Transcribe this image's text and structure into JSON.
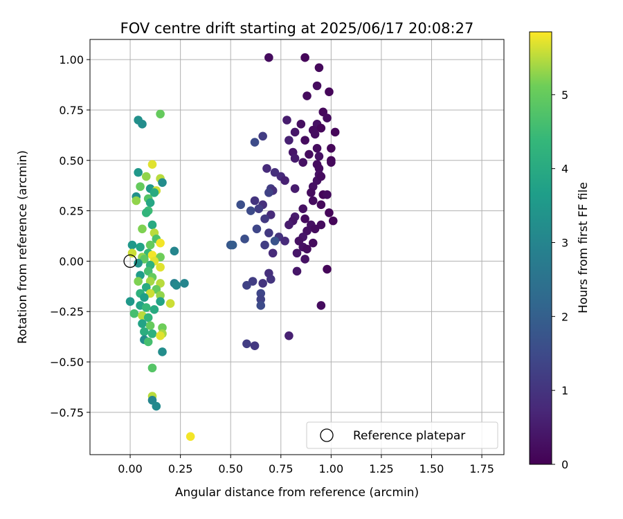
{
  "chart_data": {
    "type": "scatter",
    "title": "FOV centre drift starting at 2025/06/17 20:08:27",
    "xlabel": "Angular distance from reference (arcmin)",
    "ylabel": "Rotation from reference (arcmin)",
    "xlim": [
      -0.2,
      1.86
    ],
    "ylim": [
      -0.96,
      1.1
    ],
    "xticks": [
      0.0,
      0.25,
      0.5,
      0.75,
      1.0,
      1.25,
      1.5,
      1.75
    ],
    "xtick_labels": [
      "0.00",
      "0.25",
      "0.50",
      "0.75",
      "1.00",
      "1.25",
      "1.50",
      "1.75"
    ],
    "yticks": [
      -0.75,
      -0.5,
      -0.25,
      0.0,
      0.25,
      0.5,
      0.75,
      1.0
    ],
    "ytick_labels": [
      "−0.75",
      "−0.50",
      "−0.25",
      "0.00",
      "0.25",
      "0.50",
      "0.75",
      "1.00"
    ],
    "grid": true,
    "legend": {
      "position": "lower-right",
      "entries": [
        "Reference platepar"
      ]
    },
    "colorbar": {
      "label": "Hours from first FF file",
      "colormap": "viridis",
      "range": [
        0,
        5.85
      ],
      "ticks": [
        0,
        1,
        2,
        3,
        4,
        5
      ],
      "tick_labels": [
        "0",
        "1",
        "2",
        "3",
        "4",
        "5"
      ]
    },
    "reference": {
      "x": 0.0,
      "y": 0.0
    },
    "points": [
      {
        "x": 0.69,
        "y": 1.01,
        "h": 0.2
      },
      {
        "x": 0.87,
        "y": 1.01,
        "h": 0.1
      },
      {
        "x": 0.94,
        "y": 0.96,
        "h": 0.15
      },
      {
        "x": 0.93,
        "y": 0.87,
        "h": 0.2
      },
      {
        "x": 0.99,
        "y": 0.84,
        "h": 0.1
      },
      {
        "x": 0.88,
        "y": 0.82,
        "h": 0.2
      },
      {
        "x": 0.96,
        "y": 0.74,
        "h": 0.15
      },
      {
        "x": 0.98,
        "y": 0.71,
        "h": 0.2
      },
      {
        "x": 0.78,
        "y": 0.7,
        "h": 0.5
      },
      {
        "x": 0.85,
        "y": 0.68,
        "h": 0.25
      },
      {
        "x": 0.93,
        "y": 0.68,
        "h": 0.3
      },
      {
        "x": 0.95,
        "y": 0.66,
        "h": 0.1
      },
      {
        "x": 0.91,
        "y": 0.65,
        "h": 0.2
      },
      {
        "x": 0.82,
        "y": 0.64,
        "h": 0.4
      },
      {
        "x": 1.02,
        "y": 0.64,
        "h": 0.1
      },
      {
        "x": 0.92,
        "y": 0.63,
        "h": 0.25
      },
      {
        "x": 0.66,
        "y": 0.62,
        "h": 1.2
      },
      {
        "x": 0.62,
        "y": 0.59,
        "h": 1.5
      },
      {
        "x": 0.79,
        "y": 0.6,
        "h": 0.6
      },
      {
        "x": 0.87,
        "y": 0.6,
        "h": 0.2
      },
      {
        "x": 0.93,
        "y": 0.56,
        "h": 0.2
      },
      {
        "x": 1.0,
        "y": 0.56,
        "h": 0.1
      },
      {
        "x": 0.81,
        "y": 0.54,
        "h": 0.4
      },
      {
        "x": 0.89,
        "y": 0.53,
        "h": 0.2
      },
      {
        "x": 0.82,
        "y": 0.51,
        "h": 0.5
      },
      {
        "x": 0.94,
        "y": 0.52,
        "h": 0.3
      },
      {
        "x": 0.86,
        "y": 0.49,
        "h": 0.3
      },
      {
        "x": 1.0,
        "y": 0.5,
        "h": 0.1
      },
      {
        "x": 0.93,
        "y": 0.48,
        "h": 0.2
      },
      {
        "x": 1.0,
        "y": 0.49,
        "h": 0.15
      },
      {
        "x": 0.68,
        "y": 0.46,
        "h": 0.8
      },
      {
        "x": 0.94,
        "y": 0.46,
        "h": 0.2
      },
      {
        "x": 0.72,
        "y": 0.44,
        "h": 0.9
      },
      {
        "x": 0.94,
        "y": 0.43,
        "h": 0.3
      },
      {
        "x": 0.75,
        "y": 0.42,
        "h": 0.8
      },
      {
        "x": 0.77,
        "y": 0.4,
        "h": 0.6
      },
      {
        "x": 0.93,
        "y": 0.4,
        "h": 0.3
      },
      {
        "x": 0.95,
        "y": 0.42,
        "h": 0.2
      },
      {
        "x": 0.91,
        "y": 0.37,
        "h": 0.3
      },
      {
        "x": 0.7,
        "y": 0.36,
        "h": 1.2
      },
      {
        "x": 0.71,
        "y": 0.35,
        "h": 0.9
      },
      {
        "x": 0.82,
        "y": 0.36,
        "h": 0.5
      },
      {
        "x": 0.69,
        "y": 0.34,
        "h": 1.3
      },
      {
        "x": 0.9,
        "y": 0.34,
        "h": 0.2
      },
      {
        "x": 0.96,
        "y": 0.33,
        "h": 0.1
      },
      {
        "x": 0.98,
        "y": 0.33,
        "h": 0.2
      },
      {
        "x": 0.62,
        "y": 0.3,
        "h": 1.0
      },
      {
        "x": 0.66,
        "y": 0.28,
        "h": 0.9
      },
      {
        "x": 0.91,
        "y": 0.3,
        "h": 0.2
      },
      {
        "x": 0.95,
        "y": 0.28,
        "h": 0.15
      },
      {
        "x": 0.55,
        "y": 0.28,
        "h": 1.6
      },
      {
        "x": 0.64,
        "y": 0.26,
        "h": 1.2
      },
      {
        "x": 0.6,
        "y": 0.25,
        "h": 1.5
      },
      {
        "x": 0.86,
        "y": 0.26,
        "h": 0.3
      },
      {
        "x": 0.99,
        "y": 0.24,
        "h": 0.1
      },
      {
        "x": 0.7,
        "y": 0.23,
        "h": 0.8
      },
      {
        "x": 0.82,
        "y": 0.22,
        "h": 0.5
      },
      {
        "x": 0.67,
        "y": 0.21,
        "h": 1.1
      },
      {
        "x": 0.81,
        "y": 0.2,
        "h": 0.4
      },
      {
        "x": 0.87,
        "y": 0.21,
        "h": 0.2
      },
      {
        "x": 1.01,
        "y": 0.2,
        "h": 0.1
      },
      {
        "x": 0.9,
        "y": 0.18,
        "h": 0.3
      },
      {
        "x": 0.95,
        "y": 0.18,
        "h": 0.2
      },
      {
        "x": 0.79,
        "y": 0.18,
        "h": 0.5
      },
      {
        "x": 0.92,
        "y": 0.16,
        "h": 0.2
      },
      {
        "x": 0.88,
        "y": 0.15,
        "h": 0.3
      },
      {
        "x": 0.63,
        "y": 0.16,
        "h": 1.4
      },
      {
        "x": 0.69,
        "y": 0.14,
        "h": 1.1
      },
      {
        "x": 0.74,
        "y": 0.12,
        "h": 1.0
      },
      {
        "x": 0.86,
        "y": 0.12,
        "h": 0.4
      },
      {
        "x": 0.72,
        "y": 0.1,
        "h": 1.7
      },
      {
        "x": 0.77,
        "y": 0.1,
        "h": 0.8
      },
      {
        "x": 0.84,
        "y": 0.1,
        "h": 0.3
      },
      {
        "x": 0.57,
        "y": 0.11,
        "h": 1.6
      },
      {
        "x": 0.91,
        "y": 0.09,
        "h": 0.2
      },
      {
        "x": 0.5,
        "y": 0.08,
        "h": 1.8
      },
      {
        "x": 0.51,
        "y": 0.08,
        "h": 1.9
      },
      {
        "x": 0.67,
        "y": 0.08,
        "h": 1.2
      },
      {
        "x": 0.86,
        "y": 0.07,
        "h": 0.3
      },
      {
        "x": 0.88,
        "y": 0.06,
        "h": 0.2
      },
      {
        "x": 0.71,
        "y": 0.04,
        "h": 0.8
      },
      {
        "x": 0.83,
        "y": 0.04,
        "h": 0.4
      },
      {
        "x": 0.87,
        "y": 0.01,
        "h": 0.3
      },
      {
        "x": 0.98,
        "y": -0.04,
        "h": 0.1
      },
      {
        "x": 0.83,
        "y": -0.05,
        "h": 0.4
      },
      {
        "x": 0.69,
        "y": -0.06,
        "h": 0.9
      },
      {
        "x": 0.7,
        "y": -0.09,
        "h": 1.0
      },
      {
        "x": 0.61,
        "y": -0.1,
        "h": 1.2
      },
      {
        "x": 0.66,
        "y": -0.11,
        "h": 1.0
      },
      {
        "x": 0.58,
        "y": -0.12,
        "h": 1.3
      },
      {
        "x": 0.65,
        "y": -0.16,
        "h": 1.4
      },
      {
        "x": 0.65,
        "y": -0.19,
        "h": 1.3
      },
      {
        "x": 0.65,
        "y": -0.22,
        "h": 1.5
      },
      {
        "x": 0.95,
        "y": -0.22,
        "h": 0.2
      },
      {
        "x": 0.79,
        "y": -0.37,
        "h": 0.6
      },
      {
        "x": 0.58,
        "y": -0.41,
        "h": 1.2
      },
      {
        "x": 0.62,
        "y": -0.42,
        "h": 1.1
      },
      {
        "x": 0.04,
        "y": 0.7,
        "h": 3.3
      },
      {
        "x": 0.06,
        "y": 0.68,
        "h": 3.2
      },
      {
        "x": 0.15,
        "y": 0.73,
        "h": 5.0
      },
      {
        "x": 0.11,
        "y": 0.48,
        "h": 5.7
      },
      {
        "x": 0.04,
        "y": 0.44,
        "h": 3.5
      },
      {
        "x": 0.08,
        "y": 0.42,
        "h": 5.3
      },
      {
        "x": 0.15,
        "y": 0.41,
        "h": 5.5
      },
      {
        "x": 0.16,
        "y": 0.39,
        "h": 3.2
      },
      {
        "x": 0.05,
        "y": 0.37,
        "h": 5.0
      },
      {
        "x": 0.1,
        "y": 0.36,
        "h": 3.5
      },
      {
        "x": 0.13,
        "y": 0.35,
        "h": 5.6
      },
      {
        "x": 0.12,
        "y": 0.34,
        "h": 4.0
      },
      {
        "x": 0.03,
        "y": 0.32,
        "h": 3.3
      },
      {
        "x": 0.09,
        "y": 0.31,
        "h": 4.8
      },
      {
        "x": 0.03,
        "y": 0.3,
        "h": 5.3
      },
      {
        "x": 0.1,
        "y": 0.29,
        "h": 3.9
      },
      {
        "x": 0.09,
        "y": 0.25,
        "h": 4.5
      },
      {
        "x": 0.08,
        "y": 0.24,
        "h": 4.3
      },
      {
        "x": 0.11,
        "y": 0.18,
        "h": 4.0
      },
      {
        "x": 0.06,
        "y": 0.16,
        "h": 5.2
      },
      {
        "x": 0.12,
        "y": 0.14,
        "h": 5.5
      },
      {
        "x": 0.13,
        "y": 0.11,
        "h": 4.7
      },
      {
        "x": 0.15,
        "y": 0.09,
        "h": 5.8
      },
      {
        "x": 0.1,
        "y": 0.08,
        "h": 5.0
      },
      {
        "x": 0.01,
        "y": 0.08,
        "h": 3.5
      },
      {
        "x": 0.05,
        "y": 0.07,
        "h": 3.8
      },
      {
        "x": 0.22,
        "y": 0.05,
        "h": 3.0
      },
      {
        "x": 0.01,
        "y": 0.04,
        "h": 5.6
      },
      {
        "x": 0.09,
        "y": 0.04,
        "h": 4.4
      },
      {
        "x": 0.11,
        "y": 0.03,
        "h": 5.8
      },
      {
        "x": 0.06,
        "y": 0.02,
        "h": 5.3
      },
      {
        "x": 0.15,
        "y": 0.02,
        "h": 5.1
      },
      {
        "x": 0.07,
        "y": 0.01,
        "h": 4.9
      },
      {
        "x": 0.12,
        "y": 0.0,
        "h": 5.7
      },
      {
        "x": 0.04,
        "y": -0.01,
        "h": 3.4
      },
      {
        "x": 0.1,
        "y": -0.02,
        "h": 4.2
      },
      {
        "x": 0.15,
        "y": -0.03,
        "h": 5.7
      },
      {
        "x": 0.09,
        "y": -0.05,
        "h": 4.6
      },
      {
        "x": 0.05,
        "y": -0.07,
        "h": 3.6
      },
      {
        "x": 0.11,
        "y": -0.08,
        "h": 5.0
      },
      {
        "x": 0.04,
        "y": -0.1,
        "h": 5.2
      },
      {
        "x": 0.1,
        "y": -0.1,
        "h": 5.4
      },
      {
        "x": 0.15,
        "y": -0.11,
        "h": 5.5
      },
      {
        "x": 0.22,
        "y": -0.11,
        "h": 2.9
      },
      {
        "x": 0.27,
        "y": -0.11,
        "h": 3.0
      },
      {
        "x": 0.23,
        "y": -0.12,
        "h": 3.1
      },
      {
        "x": 0.08,
        "y": -0.13,
        "h": 4.0
      },
      {
        "x": 0.13,
        "y": -0.14,
        "h": 5.0
      },
      {
        "x": 0.05,
        "y": -0.16,
        "h": 4.2
      },
      {
        "x": 0.1,
        "y": -0.16,
        "h": 5.6
      },
      {
        "x": 0.15,
        "y": -0.17,
        "h": 5.3
      },
      {
        "x": 0.07,
        "y": -0.18,
        "h": 3.7
      },
      {
        "x": -0.0,
        "y": -0.2,
        "h": 3.5
      },
      {
        "x": 0.15,
        "y": -0.2,
        "h": 3.8
      },
      {
        "x": 0.2,
        "y": -0.21,
        "h": 5.6
      },
      {
        "x": 0.05,
        "y": -0.22,
        "h": 3.8
      },
      {
        "x": 0.08,
        "y": -0.23,
        "h": 4.4
      },
      {
        "x": 0.12,
        "y": -0.24,
        "h": 4.0
      },
      {
        "x": 0.02,
        "y": -0.26,
        "h": 4.6
      },
      {
        "x": 0.06,
        "y": -0.27,
        "h": 5.5
      },
      {
        "x": 0.09,
        "y": -0.28,
        "h": 4.3
      },
      {
        "x": 0.06,
        "y": -0.31,
        "h": 3.8
      },
      {
        "x": 0.1,
        "y": -0.32,
        "h": 5.0
      },
      {
        "x": 0.16,
        "y": -0.33,
        "h": 5.1
      },
      {
        "x": 0.07,
        "y": -0.35,
        "h": 4.1
      },
      {
        "x": 0.11,
        "y": -0.36,
        "h": 4.2
      },
      {
        "x": 0.16,
        "y": -0.36,
        "h": 5.4
      },
      {
        "x": 0.15,
        "y": -0.37,
        "h": 5.7
      },
      {
        "x": 0.07,
        "y": -0.39,
        "h": 3.2
      },
      {
        "x": 0.09,
        "y": -0.4,
        "h": 4.6
      },
      {
        "x": 0.16,
        "y": -0.45,
        "h": 3.2
      },
      {
        "x": 0.11,
        "y": -0.53,
        "h": 4.8
      },
      {
        "x": 0.11,
        "y": -0.67,
        "h": 5.5
      },
      {
        "x": 0.11,
        "y": -0.69,
        "h": 3.0
      },
      {
        "x": 0.13,
        "y": -0.72,
        "h": 3.1
      },
      {
        "x": 0.3,
        "y": -0.87,
        "h": 5.8
      }
    ]
  }
}
